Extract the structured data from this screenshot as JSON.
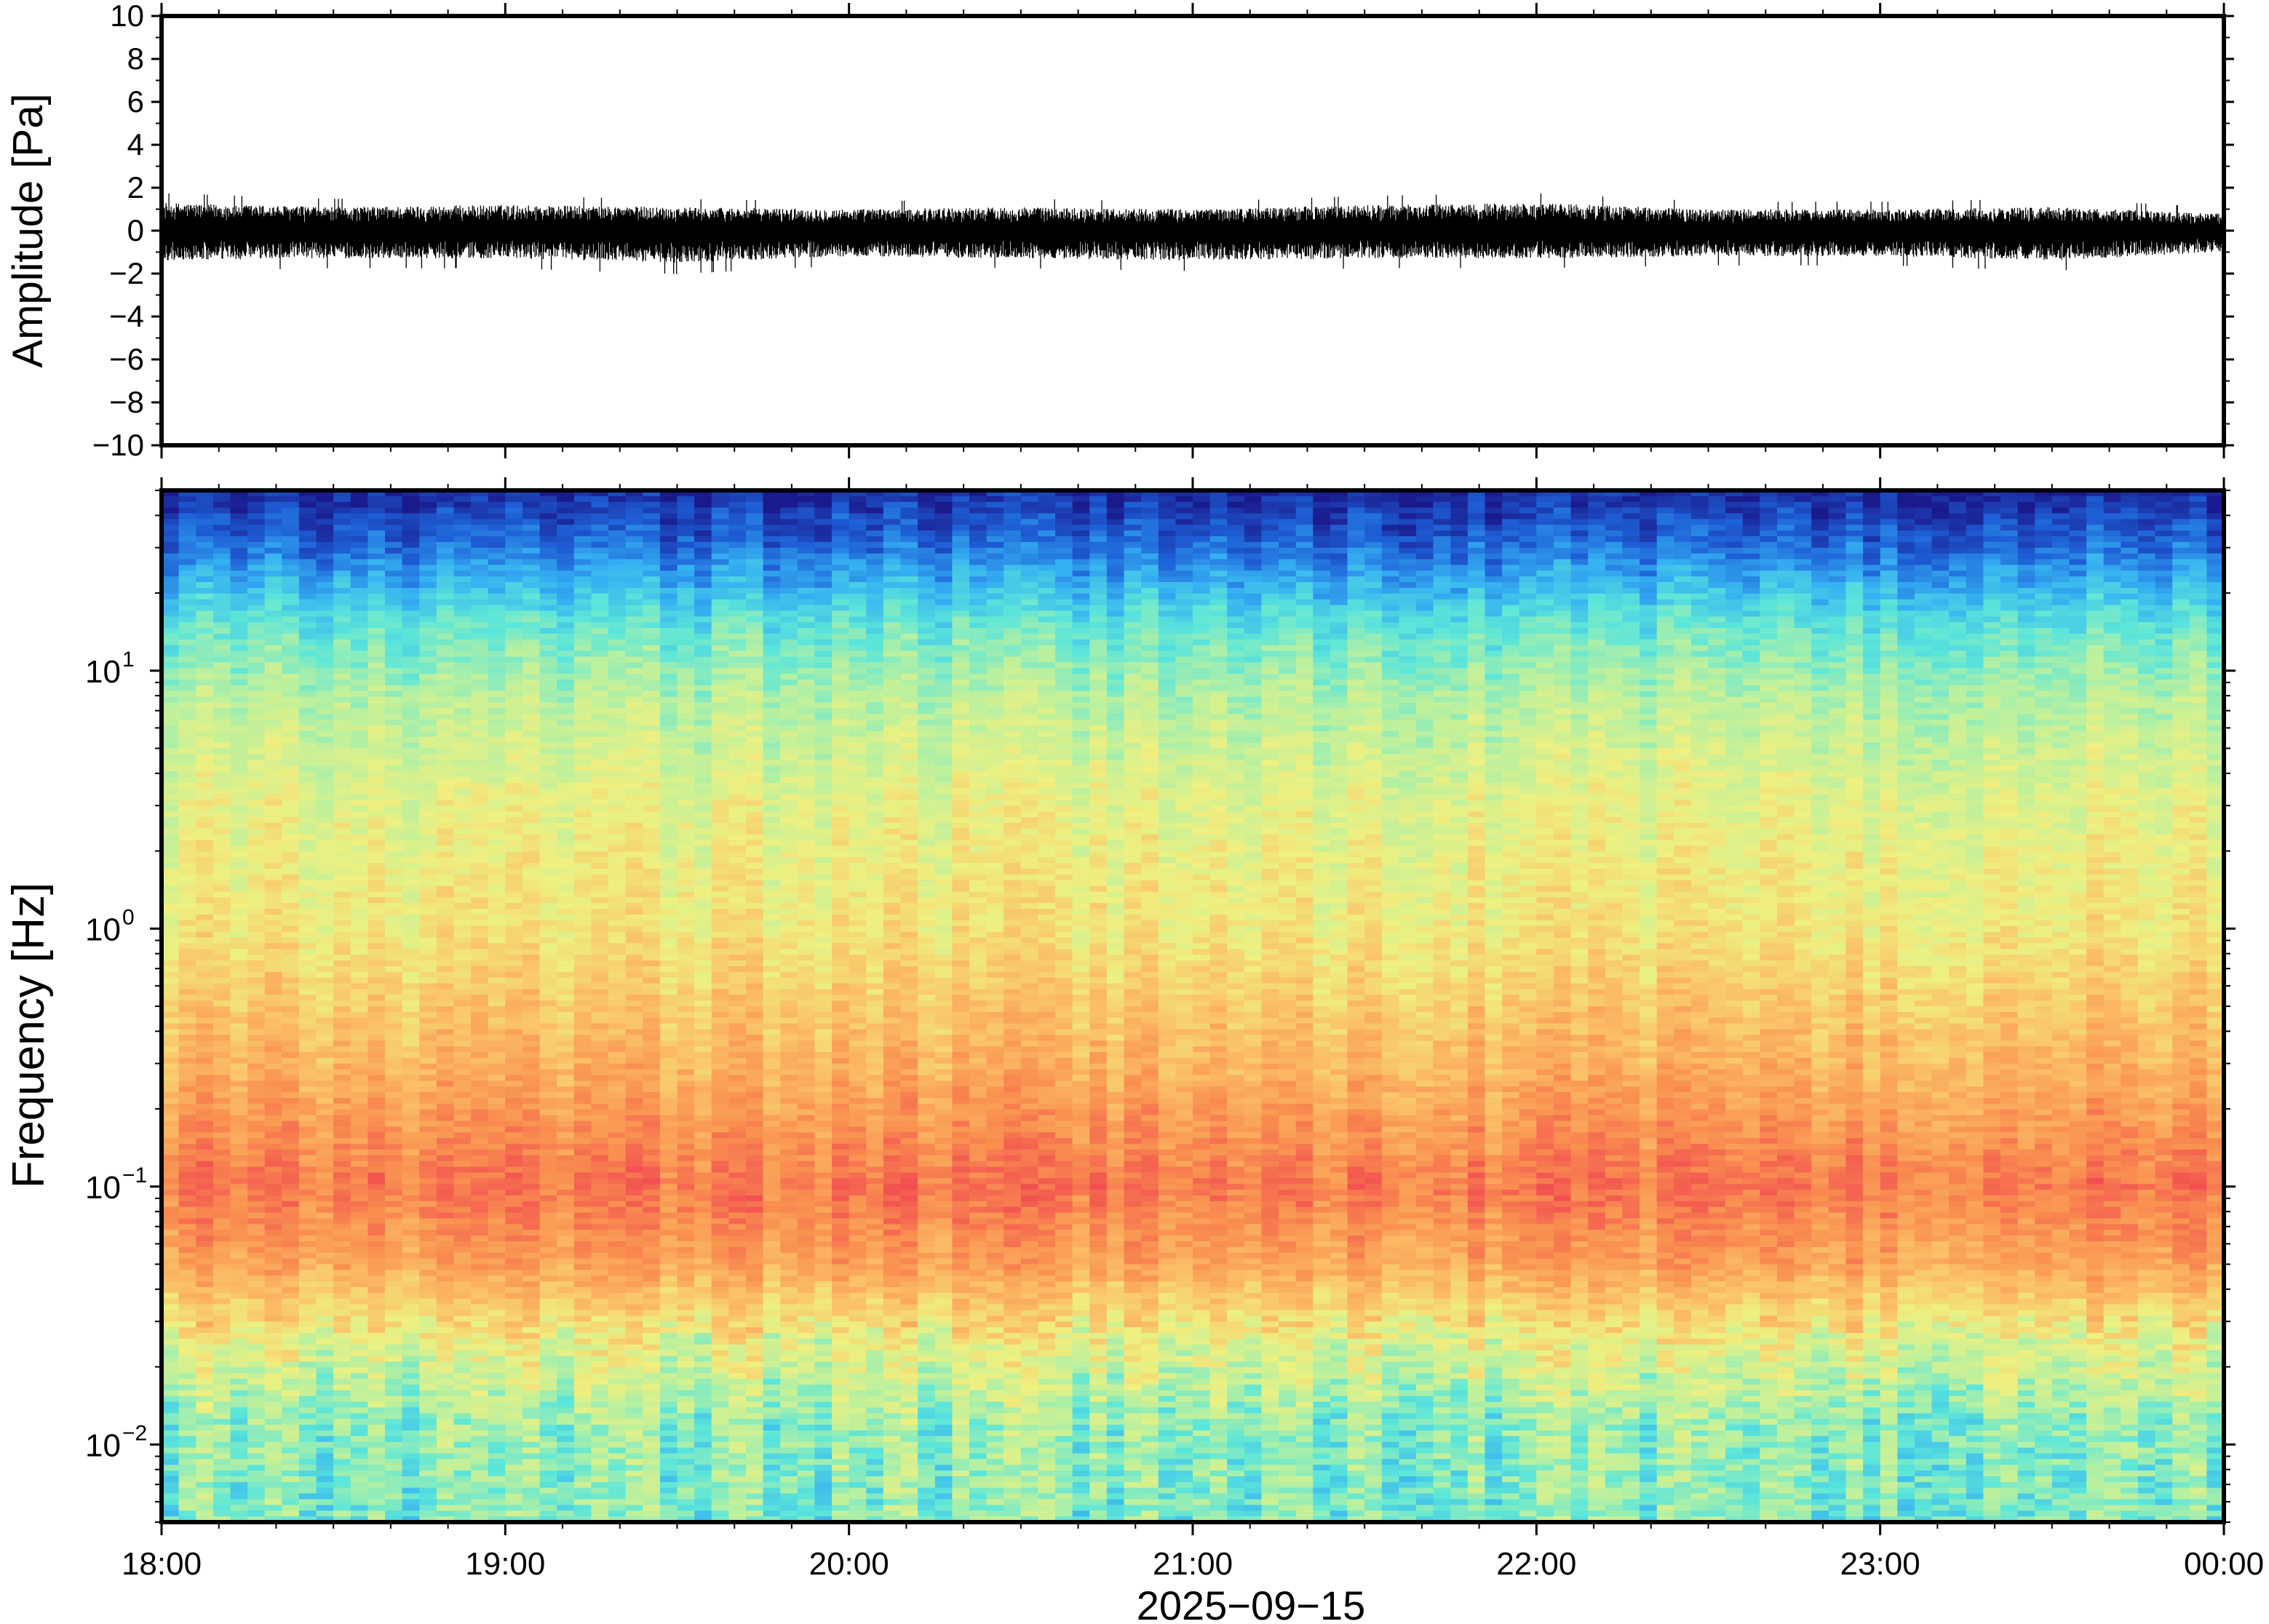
{
  "chart_data": [
    {
      "type": "line",
      "panel": "waveform",
      "ylabel": "Amplitude [Pa]",
      "ylim": [
        -10,
        10
      ],
      "yticks": [
        "10",
        "8",
        "6",
        "4",
        "2",
        "0",
        "−2",
        "−4",
        "−6",
        "−8",
        "−10"
      ],
      "ytick_values": [
        10,
        8,
        6,
        4,
        2,
        0,
        -2,
        -4,
        -6,
        -8,
        -10
      ],
      "xlim": [
        "2025-09-15 18:00",
        "2025-09-16 00:00"
      ],
      "envelope": {
        "x_hours": [
          18.0,
          18.5,
          19.0,
          19.5,
          20.0,
          20.5,
          21.0,
          21.5,
          22.0,
          22.5,
          23.0,
          23.5,
          24.0
        ],
        "upper": [
          1.3,
          1.1,
          1.2,
          1.1,
          1.0,
          1.1,
          1.0,
          1.2,
          1.3,
          1.0,
          1.0,
          1.1,
          0.8
        ],
        "lower": [
          -1.4,
          -1.3,
          -1.3,
          -1.5,
          -1.2,
          -1.3,
          -1.4,
          -1.3,
          -1.3,
          -1.2,
          -1.2,
          -1.4,
          -1.0
        ]
      },
      "grid": false
    },
    {
      "type": "heatmap",
      "panel": "spectrogram",
      "ylabel": "Frequency [Hz]",
      "yscale": "log",
      "ylim": [
        0.005,
        50
      ],
      "yticks": [
        {
          "base": "10",
          "exp": "1",
          "value": 10
        },
        {
          "base": "10",
          "exp": "0",
          "value": 1
        },
        {
          "base": "10",
          "exp": "−1",
          "value": 0.1
        },
        {
          "base": "10",
          "exp": "−2",
          "value": 0.01
        }
      ],
      "xlabel": "2025−09−15",
      "xticks": [
        "18:00",
        "19:00",
        "20:00",
        "21:00",
        "22:00",
        "23:00",
        "00:00"
      ],
      "xtick_hours": [
        18,
        19,
        20,
        21,
        22,
        23,
        24
      ],
      "colormap": [
        "#1a1a8c",
        "#1e5fd6",
        "#35b0f2",
        "#5ce6d9",
        "#b8f0a0",
        "#eef080",
        "#fbc068",
        "#f99050",
        "#f25050"
      ],
      "level_profile": {
        "freq_hz": [
          50,
          30,
          15,
          8,
          3,
          1,
          0.3,
          0.1,
          0.05,
          0.025,
          0.012,
          0.005
        ],
        "level": [
          0.02,
          0.15,
          0.38,
          0.5,
          0.6,
          0.65,
          0.78,
          0.92,
          0.82,
          0.6,
          0.45,
          0.42
        ]
      },
      "grid": false
    }
  ]
}
